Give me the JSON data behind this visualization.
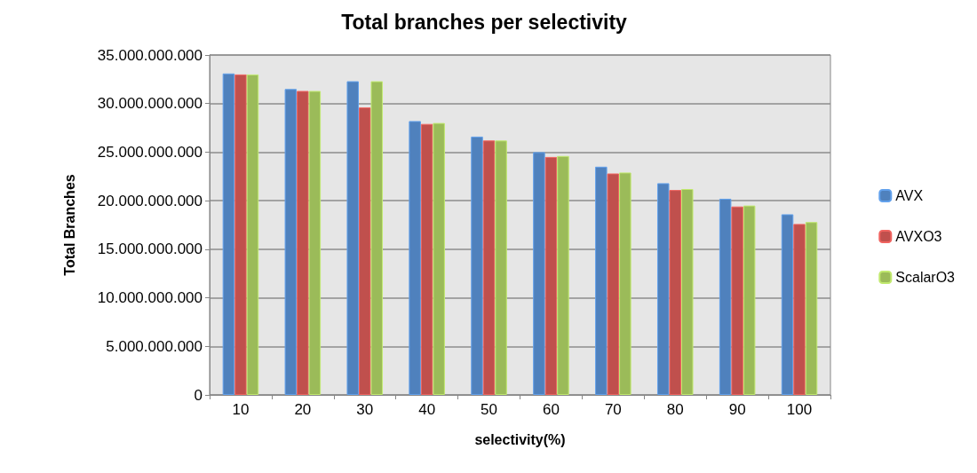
{
  "chart_data": {
    "type": "bar",
    "title": "Total branches per selectivity",
    "xlabel": "selectivity(%)",
    "ylabel": "Total Branches",
    "categories": [
      "10",
      "20",
      "30",
      "40",
      "50",
      "60",
      "70",
      "80",
      "90",
      "100"
    ],
    "series": [
      {
        "name": "AVX",
        "color": "#4f81bd",
        "values": [
          33100000000,
          31500000000,
          32300000000,
          28200000000,
          26600000000,
          25000000000,
          23500000000,
          21800000000,
          20200000000,
          18600000000
        ]
      },
      {
        "name": "AVXO3",
        "color": "#c0504d",
        "values": [
          33000000000,
          31300000000,
          29600000000,
          27900000000,
          26200000000,
          24500000000,
          22800000000,
          21100000000,
          19400000000,
          17600000000
        ]
      },
      {
        "name": "ScalarO3",
        "color": "#9bbb59",
        "values": [
          33000000000,
          31300000000,
          32300000000,
          28000000000,
          26200000000,
          24600000000,
          22900000000,
          21200000000,
          19500000000,
          17800000000
        ]
      }
    ],
    "ylim": [
      0,
      35000000000
    ],
    "yticks": [
      0,
      {
        "value": 5000000000,
        "label": "5.000.000.000"
      },
      {
        "value": 10000000000,
        "label": "10.000.000.000"
      },
      {
        "value": 15000000000,
        "label": "15.000.000.000"
      },
      {
        "value": 20000000000,
        "label": "20.000.000.000"
      },
      {
        "value": 25000000000,
        "label": "25.000.000.000"
      },
      {
        "value": 30000000000,
        "label": "30.000.000.000"
      },
      {
        "value": 35000000000,
        "label": "35.000.000.000"
      }
    ],
    "grid": "y",
    "legend": "right"
  }
}
